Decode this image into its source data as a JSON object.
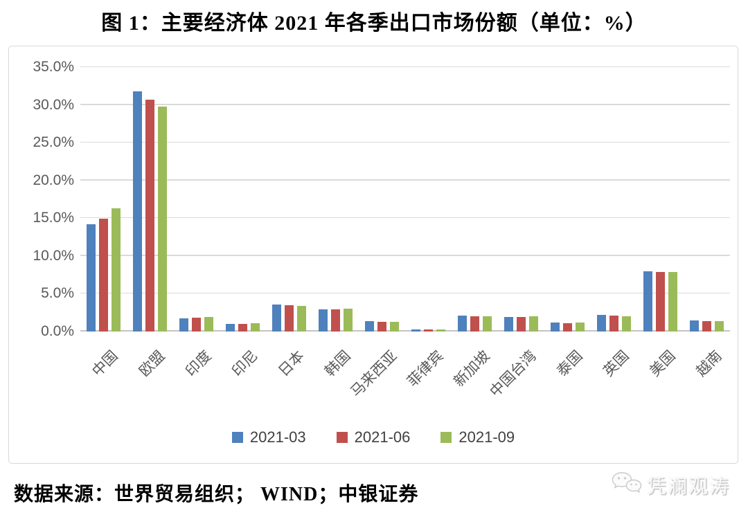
{
  "source_note": "数据来源：世界贸易组织； WIND；中银证券",
  "watermark": {
    "text": "凭澜观涛",
    "icon": "wechat-icon"
  },
  "colors": {
    "series_blue": "#4F81BD",
    "series_red": "#C0504D",
    "series_green": "#9BBB59",
    "gridline": "#DADADA",
    "baseline": "#C3C3C3",
    "axis_text": "#595959",
    "legend_text": "#404040",
    "frame_border": "#D8D8D8"
  },
  "chart_data": {
    "type": "bar",
    "title": "图 1：主要经济体 2021 年各季出口市场份额（单位：%）",
    "categories": [
      "中国",
      "欧盟",
      "印度",
      "印尼",
      "日本",
      "韩国",
      "马来西亚",
      "菲律宾",
      "新加坡",
      "中国台湾",
      "泰国",
      "英国",
      "美国",
      "越南"
    ],
    "series": [
      {
        "name": "2021-03",
        "color": "#4F81BD",
        "values": [
          14.2,
          31.8,
          1.7,
          1.0,
          3.6,
          2.9,
          1.4,
          0.3,
          2.1,
          1.9,
          1.2,
          2.2,
          8.0,
          1.5
        ]
      },
      {
        "name": "2021-06",
        "color": "#C0504D",
        "values": [
          14.9,
          30.7,
          1.8,
          1.0,
          3.5,
          2.9,
          1.3,
          0.25,
          2.0,
          1.9,
          1.1,
          2.1,
          7.9,
          1.4
        ]
      },
      {
        "name": "2021-09",
        "color": "#9BBB59",
        "values": [
          16.3,
          29.8,
          1.9,
          1.1,
          3.4,
          3.0,
          1.3,
          0.3,
          2.0,
          2.0,
          1.2,
          2.0,
          7.9,
          1.4
        ]
      }
    ],
    "xlabel": "",
    "ylabel": "",
    "ylim": [
      0,
      35
    ],
    "yticks": [
      0,
      5,
      10,
      15,
      20,
      25,
      30,
      35
    ],
    "ytick_labels": [
      "0.0%",
      "5.0%",
      "10.0%",
      "15.0%",
      "20.0%",
      "25.0%",
      "30.0%",
      "35.0%"
    ],
    "grid": true,
    "legend_position": "bottom-center"
  }
}
